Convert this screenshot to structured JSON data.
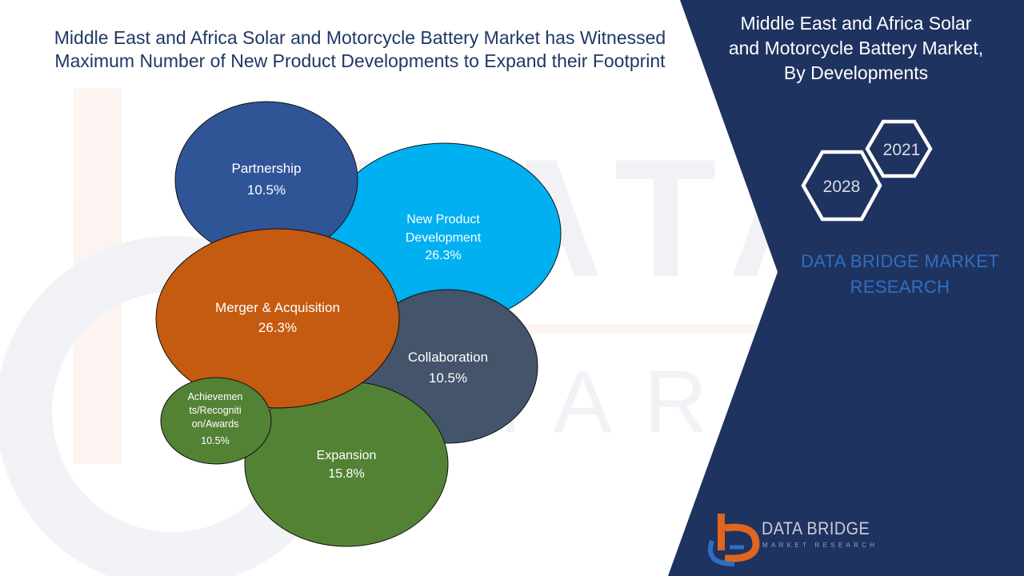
{
  "headline": {
    "line1": "Middle East and Africa Solar and Motorcycle Battery Market has Witnessed",
    "line2": "Maximum Number of New Product Developments to Expand their Footprint"
  },
  "side_panel": {
    "title_lines": [
      "Middle East and Africa Solar",
      "and Motorcycle Battery Market,",
      "By Developments"
    ],
    "years": {
      "start": "2021",
      "end": "2028"
    },
    "brand_lines": [
      "DATA BRIDGE MARKET",
      "RESEARCH"
    ],
    "logo_name": "DATA BRIDGE",
    "logo_tagline": "MARKET RESEARCH",
    "panel_color": "#1f3360"
  },
  "chart_data": {
    "type": "bubble",
    "unit": "%",
    "series": [
      {
        "label_lines": [
          "New Product",
          "Development"
        ],
        "value": 26.3,
        "value_text": "26.3%",
        "color": "#00b0f0"
      },
      {
        "label_lines": [
          "Partnership"
        ],
        "value": 10.5,
        "value_text": "10.5%",
        "color": "#2f5597"
      },
      {
        "label_lines": [
          "Collaboration"
        ],
        "value": 10.5,
        "value_text": "10.5%",
        "color": "#44546a"
      },
      {
        "label_lines": [
          "Expansion"
        ],
        "value": 15.8,
        "value_text": "15.8%",
        "color": "#548235"
      },
      {
        "label_lines": [
          "Merger & Acquisition"
        ],
        "value": 26.3,
        "value_text": "26.3%",
        "color": "#c55a11"
      },
      {
        "label_lines": [
          "Achievemen",
          "ts/Recogniti",
          "on/Awards"
        ],
        "value": 10.5,
        "value_text": "10.5%",
        "color": "#548235"
      }
    ]
  }
}
